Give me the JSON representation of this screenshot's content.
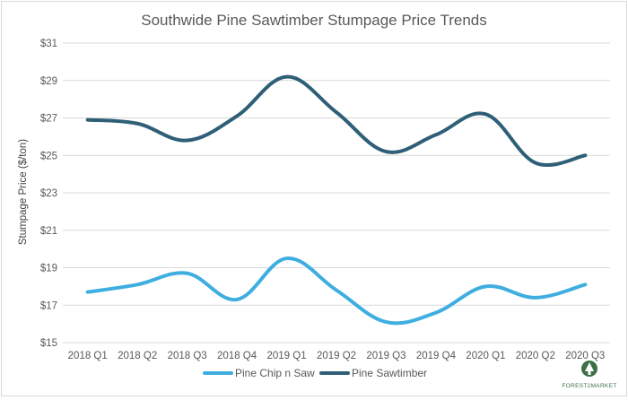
{
  "chart_data": {
    "type": "line",
    "title": "Southwide Pine Sawtimber Stumpage Price Trends",
    "xlabel": "",
    "ylabel": "Stumpage Price ($/ton)",
    "categories": [
      "2018 Q1",
      "2018 Q2",
      "2018 Q3",
      "2018 Q4",
      "2019 Q1",
      "2019 Q2",
      "2019 Q3",
      "2019 Q4",
      "2020 Q1",
      "2020 Q2",
      "2020 Q3"
    ],
    "y_ticks": [
      "$15",
      "$17",
      "$19",
      "$21",
      "$23",
      "$25",
      "$27",
      "$29",
      "$31"
    ],
    "ylim": [
      15,
      31
    ],
    "grid": true,
    "legend_position": "bottom",
    "series": [
      {
        "name": "Pine Chip n Saw",
        "color": "#3eaee0",
        "values": [
          17.7,
          18.1,
          18.7,
          17.3,
          19.5,
          17.8,
          16.1,
          16.6,
          18.0,
          17.4,
          18.1
        ]
      },
      {
        "name": "Pine Sawtimber",
        "color": "#2f5f78",
        "values": [
          26.9,
          26.7,
          25.8,
          27.1,
          29.2,
          27.3,
          25.2,
          26.1,
          27.2,
          24.6,
          25.0
        ]
      }
    ]
  },
  "logo": {
    "text": "FOREST2MARKET",
    "icon": "tree-icon",
    "color": "#3c6e47"
  }
}
